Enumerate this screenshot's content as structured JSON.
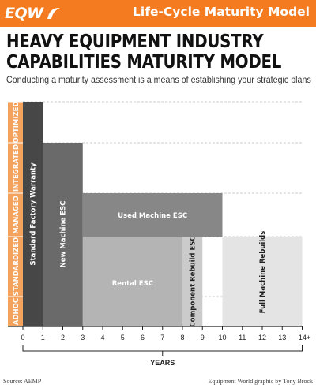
{
  "header": {
    "logo_text": "EQW",
    "title": "Life-Cycle Maturity Model"
  },
  "main_title_line1": "HEAVY EQUIPMENT INDUSTRY",
  "main_title_line2": "CAPABILITIES MATURITY MODEL",
  "subtitle": "Conducting a maturity assessment is a means of establishing your strategic plans",
  "source": "Source: AEMP",
  "credit": "Equipment World graphic by Tony Brock",
  "colors": {
    "brand_orange": "#f47b20",
    "label_band": "#f4a35e",
    "standard_factory_warranty": "#474747",
    "new_machine_esc": "#6a6a6a",
    "used_machine_esc": "#878787",
    "rental_esc": "#b4b4b4",
    "component_rebuild_esc": "#cbcbcb",
    "full_machine_rebuilds": "#e4e4e4"
  },
  "chart_data": {
    "type": "bar",
    "orientation": "horizontal-range",
    "xlabel": "YEARS",
    "ylabel": "",
    "x_ticks": [
      "0",
      "1",
      "2",
      "3",
      "4",
      "5",
      "6",
      "7",
      "8",
      "9",
      "10",
      "11",
      "12",
      "13",
      "14+"
    ],
    "xlim": [
      0,
      14
    ],
    "levels": [
      "ADHOC",
      "STANDARDIZED",
      "MANAGED",
      "INTEGRATED",
      "OPTIMIZED"
    ],
    "grid": "dashed-horizontal",
    "bars": [
      {
        "label": "Standard Factory Warranty",
        "x_start": 0,
        "x_end": 1,
        "level_from": "ADHOC",
        "level_to": "OPTIMIZED",
        "text_color": "#ffffff",
        "orient": "vertical"
      },
      {
        "label": "New Machine ESC",
        "x_start": 1,
        "x_end": 3,
        "level_from": "ADHOC",
        "level_to": "INTEGRATED",
        "text_color": "#ffffff",
        "orient": "vertical"
      },
      {
        "label": "Used Machine ESC",
        "x_start": 3,
        "x_end": 10,
        "level_from": "MANAGED",
        "level_to": "MANAGED",
        "text_color": "#ffffff",
        "orient": "horizontal"
      },
      {
        "label": "Rental ESC",
        "x_start": 3,
        "x_end": 8,
        "level_from": "ADHOC",
        "level_to": "STANDARDIZED",
        "text_color": "#ffffff",
        "orient": "horizontal"
      },
      {
        "label": "Component Rebuild ESC",
        "x_start": 8,
        "x_end": 9,
        "level_from": "ADHOC",
        "level_to": "STANDARDIZED",
        "text_color": "#222222",
        "orient": "vertical"
      },
      {
        "label": "Full Machine Rebuilds",
        "x_start": 10,
        "x_end": 14,
        "level_from": "ADHOC",
        "level_to": "STANDARDIZED",
        "text_color": "#222222",
        "orient": "vertical"
      }
    ]
  }
}
